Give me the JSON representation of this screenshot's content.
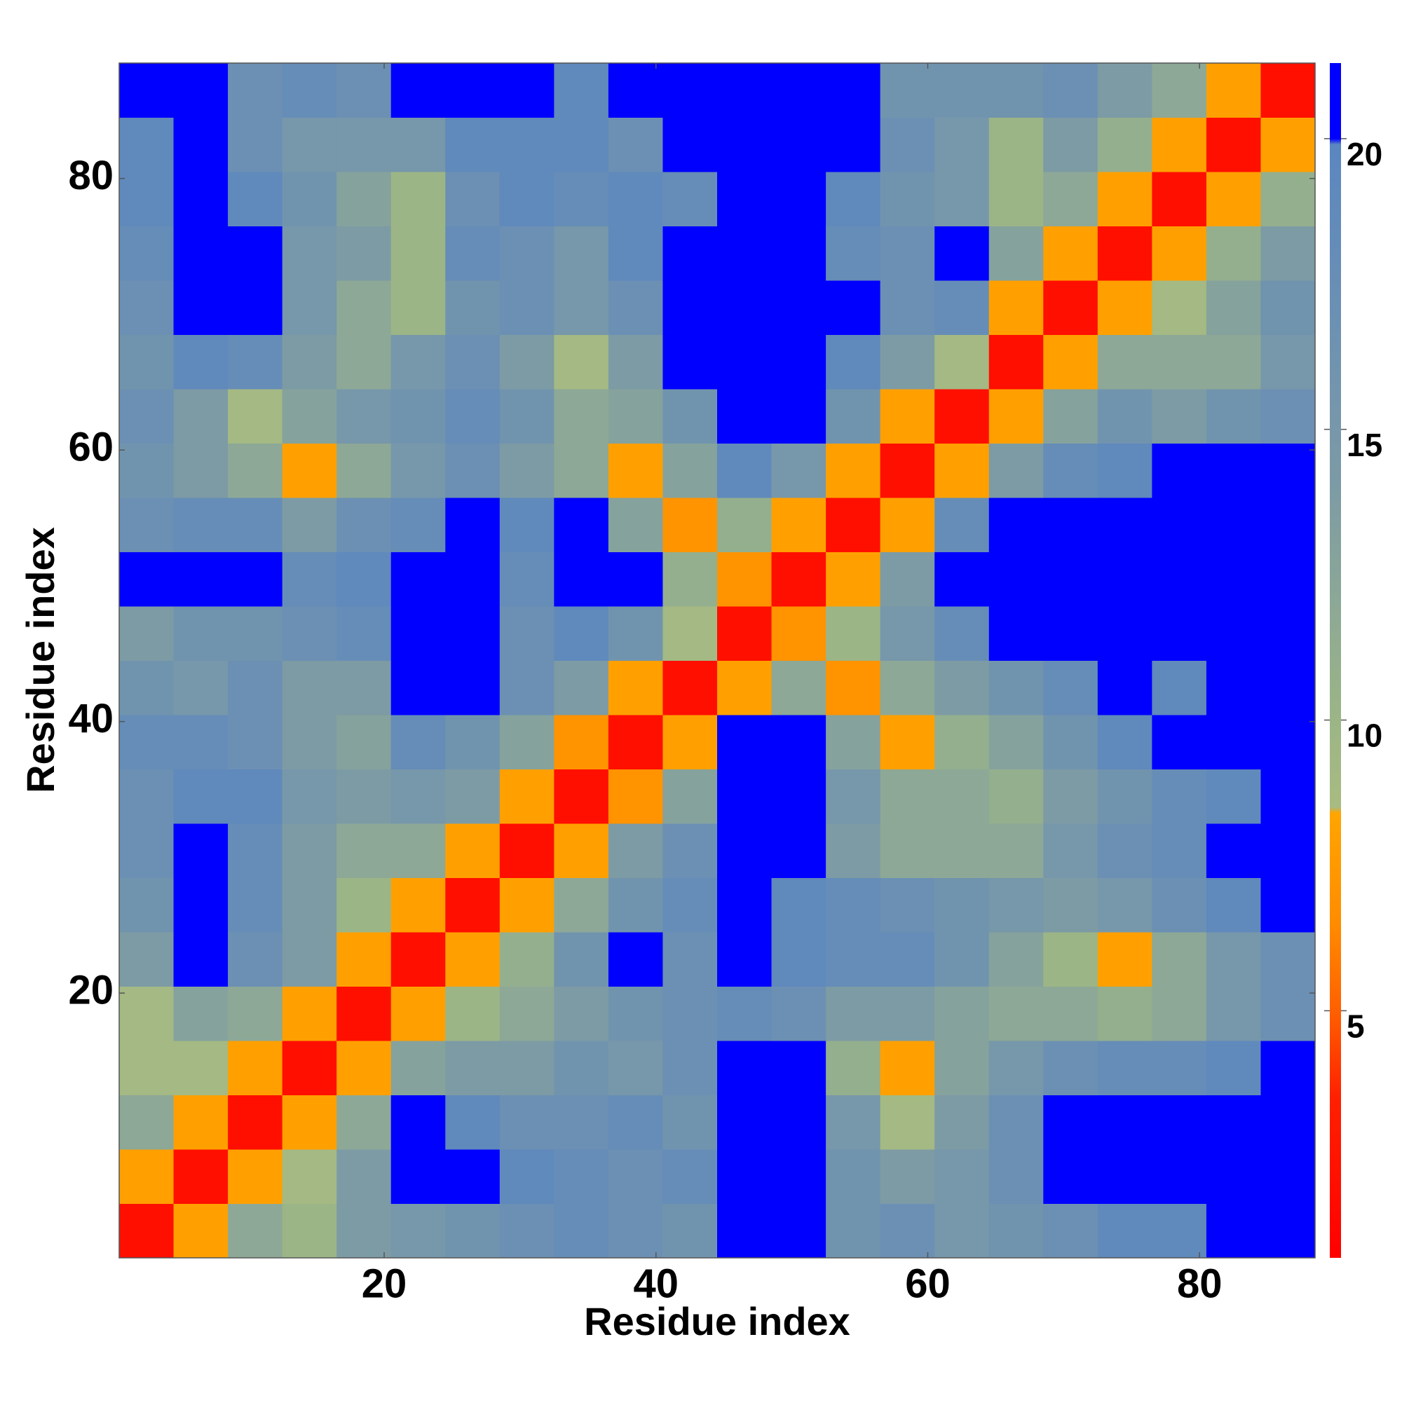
{
  "chart_data": {
    "type": "heatmap",
    "xlabel": "Residue index",
    "ylabel": "Residue index",
    "xlim": [
      0.5,
      88.5
    ],
    "ylim": [
      0.5,
      88.5
    ],
    "xticks": [
      20,
      40,
      60,
      80
    ],
    "yticks": [
      20,
      40,
      60,
      80
    ],
    "xbins": [
      0.5,
      4.5,
      8.5,
      12.5,
      16.5,
      20.5,
      24.5,
      28.5,
      32.5,
      36.5,
      40.5,
      44.5,
      48.5,
      52.5,
      56.5,
      60.5,
      64.5,
      68.5,
      72.5,
      76.5,
      80.5,
      84.5,
      88.5
    ],
    "ybins": [
      0.5,
      4.5,
      8.5,
      12.5,
      16.5,
      20.5,
      24.5,
      28.5,
      32.5,
      36.5,
      40.5,
      44.5,
      48.5,
      52.5,
      56.5,
      60.5,
      64.5,
      68.5,
      72.5,
      76.5,
      80.5,
      84.5,
      88.5
    ],
    "values": [
      [
        2,
        8,
        12,
        10,
        14,
        15,
        16,
        17,
        18,
        17,
        16,
        21,
        21,
        16,
        17,
        15,
        16,
        17,
        19,
        19,
        20,
        21
      ],
      [
        8,
        2,
        8,
        9,
        14,
        21,
        21,
        19,
        18,
        17,
        18,
        21,
        21,
        16,
        14,
        15,
        17,
        21,
        21,
        21,
        20,
        21
      ],
      [
        12,
        8,
        2,
        8,
        12,
        21,
        19,
        17,
        17,
        18,
        16,
        21,
        21,
        15,
        9,
        14,
        17,
        21,
        21,
        21,
        21,
        21
      ],
      [
        9,
        9,
        8,
        2,
        8,
        13,
        14,
        14,
        16,
        15,
        17,
        20,
        21,
        11,
        8,
        13,
        15,
        17,
        18,
        18,
        19,
        20
      ],
      [
        9,
        13,
        12,
        8,
        2,
        8,
        10,
        12,
        14,
        16,
        17,
        18,
        17,
        14,
        14,
        13,
        12,
        12,
        11,
        12,
        15,
        17
      ],
      [
        14,
        20,
        17,
        14,
        8,
        2,
        8,
        11,
        16,
        21,
        17,
        20,
        19,
        18,
        18,
        16,
        13,
        10,
        8,
        12,
        15,
        17
      ],
      [
        16,
        20,
        18,
        14,
        10,
        8,
        2,
        8,
        12,
        16,
        18,
        20,
        19,
        18,
        17,
        16,
        15,
        14,
        15,
        17,
        19,
        20
      ],
      [
        17,
        20,
        18,
        14,
        12,
        12,
        8,
        2,
        8,
        14,
        17,
        21,
        20,
        14,
        12,
        12,
        12,
        15,
        17,
        18,
        20,
        21
      ],
      [
        17,
        19,
        19,
        15,
        14,
        15,
        14,
        8,
        2,
        7,
        13,
        21,
        21,
        15,
        12,
        12,
        11,
        14,
        16,
        18,
        19,
        20
      ],
      [
        18,
        18,
        17,
        14,
        13,
        18,
        16,
        13,
        7,
        2,
        8,
        21,
        21,
        13,
        8,
        11,
        13,
        16,
        19,
        20,
        20,
        20
      ],
      [
        16,
        15,
        17,
        14,
        14,
        20,
        20,
        17,
        14,
        8,
        2,
        8,
        12,
        7,
        12,
        14,
        16,
        18,
        20,
        19,
        21,
        21
      ],
      [
        14,
        16,
        16,
        17,
        18,
        21,
        21,
        17,
        19,
        16,
        9,
        2,
        7,
        10,
        15,
        18,
        20,
        21,
        20,
        20,
        21,
        21
      ],
      [
        21,
        21,
        20,
        18,
        19,
        21,
        21,
        18,
        21,
        21,
        11,
        7,
        2,
        8,
        14,
        20,
        21,
        21,
        21,
        21,
        21,
        21
      ],
      [
        17,
        18,
        18,
        14,
        17,
        18,
        20,
        19,
        20,
        13,
        7,
        11,
        8,
        2,
        8,
        18,
        21,
        21,
        21,
        21,
        21,
        21
      ],
      [
        16,
        14,
        12,
        8,
        12,
        15,
        17,
        14,
        12,
        8,
        13,
        19,
        15,
        8,
        2,
        8,
        14,
        18,
        19,
        20,
        21,
        20
      ],
      [
        17,
        14,
        9,
        13,
        15,
        16,
        18,
        16,
        12,
        13,
        16,
        21,
        21,
        16,
        8,
        2,
        8,
        13,
        16,
        14,
        16,
        17
      ],
      [
        16,
        19,
        18,
        14,
        12,
        15,
        17,
        14,
        9,
        14,
        20,
        21,
        21,
        19,
        14,
        9,
        2,
        8,
        12,
        12,
        12,
        15
      ],
      [
        17,
        21,
        20,
        15,
        12,
        10,
        16,
        17,
        15,
        17,
        20,
        21,
        21,
        20,
        17,
        18,
        8,
        2,
        8,
        9,
        13,
        16
      ],
      [
        18,
        21,
        20,
        15,
        14,
        10,
        18,
        17,
        15,
        19,
        20,
        21,
        21,
        18,
        17,
        20,
        13,
        8,
        2,
        8,
        11,
        14
      ],
      [
        19,
        20,
        19,
        16,
        13,
        10,
        17,
        19,
        18,
        19,
        18,
        21,
        21,
        19,
        16,
        15,
        10,
        12,
        8,
        2,
        8,
        11
      ],
      [
        19,
        20,
        17,
        15,
        15,
        15,
        19,
        19,
        19,
        17,
        20,
        21,
        21,
        20,
        17,
        15,
        10,
        14,
        11,
        8,
        2,
        8
      ],
      [
        20,
        20,
        17,
        18,
        17,
        21,
        20,
        20,
        19,
        20,
        21,
        21,
        21,
        20,
        16,
        16,
        16,
        17,
        14,
        12,
        8,
        2
      ]
    ],
    "clim": [
      0.75,
      21.3
    ],
    "cticks": [
      5,
      10,
      15,
      20
    ],
    "colorscale": [
      [
        0.75,
        "#ff0000"
      ],
      [
        3.5,
        "#ff2000"
      ],
      [
        5,
        "#ff6000"
      ],
      [
        6.5,
        "#ff8c00"
      ],
      [
        8.4,
        "#ffa500"
      ],
      [
        8.5,
        "#a8bb82"
      ],
      [
        10,
        "#9cb586"
      ],
      [
        14,
        "#7d9ba5"
      ],
      [
        19.9,
        "#5b86c0"
      ],
      [
        20,
        "#0000ff"
      ],
      [
        21.3,
        "#0000ff"
      ]
    ]
  }
}
